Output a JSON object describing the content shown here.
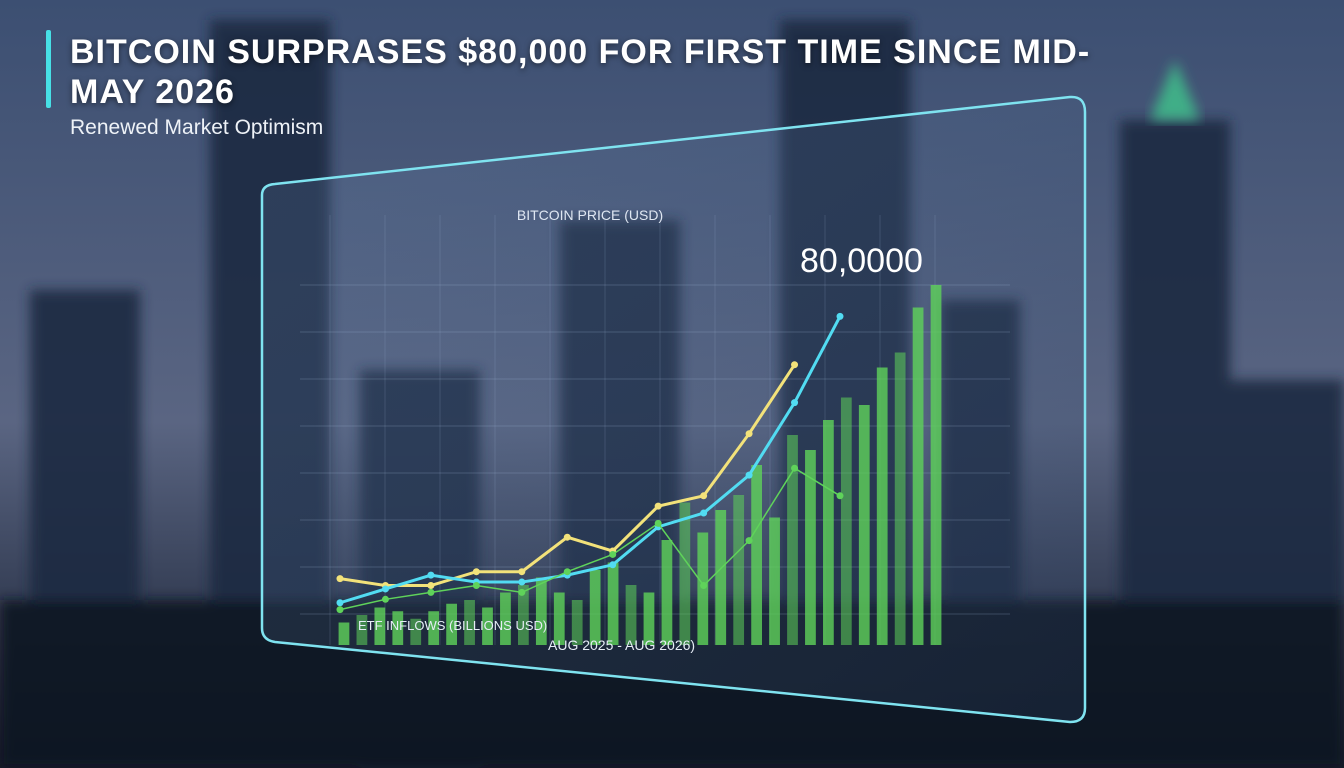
{
  "header": {
    "title": "BITCOIN SURPRASES $80,000 FOR FIRST TIME SINCE MID-MAY 2026",
    "subtitle": "Renewed Market Optimism"
  },
  "chart_data": [
    {
      "type": "line",
      "title": "BITCOIN PRICE (USD)",
      "annotation": "80,0000",
      "ylim": [
        0,
        100
      ],
      "series": [
        {
          "color": "#f3e27a",
          "values": [
            12,
            10,
            10,
            14,
            14,
            24,
            20,
            33,
            36,
            54,
            74,
            null
          ]
        },
        {
          "color": "#52dcf2",
          "values": [
            5,
            9,
            13,
            11,
            11,
            13,
            16,
            27,
            31,
            42,
            63,
            88
          ]
        },
        {
          "color": "#5fd35a",
          "values": [
            3,
            6,
            8,
            10,
            8,
            14,
            19,
            28,
            10,
            23,
            44,
            36
          ]
        }
      ]
    },
    {
      "type": "bar",
      "xlabel": "AUG 2025 - AUG 2026)",
      "ylabel": "ETF INFLOWS (BILLIONS USD)",
      "ylim": [
        0,
        100
      ],
      "color": "#5fd35a",
      "values": [
        6,
        8,
        10,
        9,
        7,
        9,
        11,
        12,
        10,
        14,
        16,
        18,
        14,
        12,
        20,
        22,
        16,
        14,
        28,
        38,
        30,
        36,
        40,
        48,
        34,
        56,
        52,
        60,
        66,
        64,
        74,
        78,
        90,
        96
      ]
    }
  ]
}
